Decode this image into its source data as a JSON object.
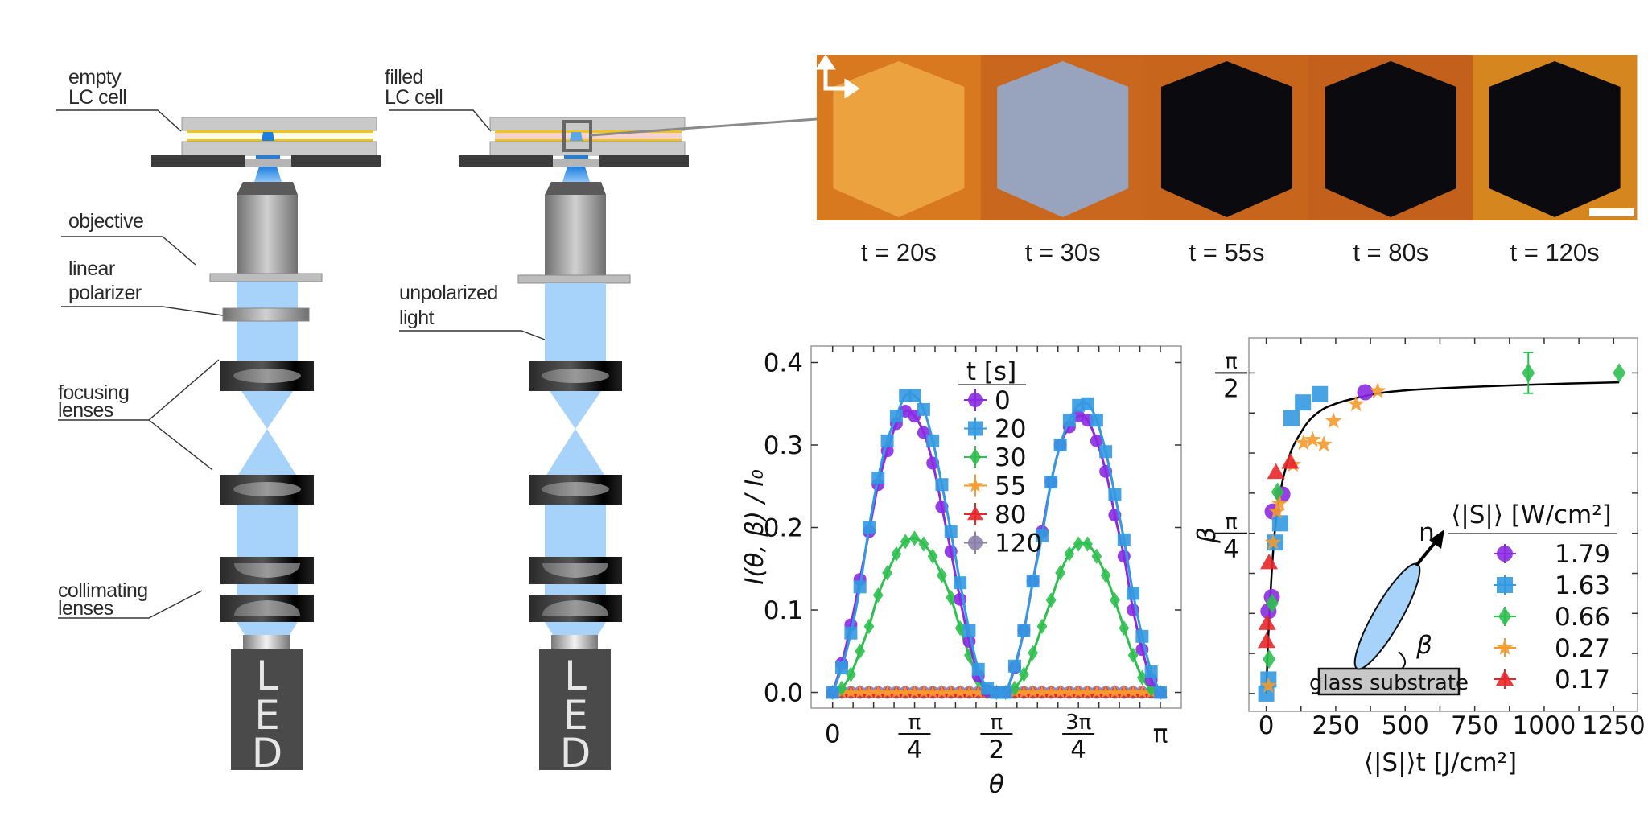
{
  "setup": {
    "empty_cell_label": [
      "empty",
      "LC cell"
    ],
    "filled_cell_label": [
      "filled",
      "LC cell"
    ],
    "objective_label": "objective",
    "polarizer_label": [
      "linear",
      "polarizer"
    ],
    "unpolarized_label": [
      "unpolarized",
      "light"
    ],
    "focusing_label": [
      "focusing",
      "lenses"
    ],
    "collimating_label": [
      "collimating",
      "lenses"
    ],
    "led_letters": [
      "L",
      "E",
      "D"
    ],
    "colors": {
      "light_beam": "#a7d2fa",
      "lc_drop": "#1f7fe0",
      "spacer": "#f0c419",
      "lc_fill": "#f6d3d0",
      "led_box": "#4a4a4a"
    }
  },
  "micrographs": {
    "polarizer_arrows_icon": "crossed-polarizers-arrows",
    "scale_bar": true,
    "frames": [
      {
        "label": "t = 20s",
        "background": "#d8791f",
        "hexagon": "#eca23e"
      },
      {
        "label": "t = 30s",
        "background": "#c9671f",
        "hexagon": "#98a4be"
      },
      {
        "label": "t = 55s",
        "background": "#c8651c",
        "hexagon": "#0b0b0f"
      },
      {
        "label": "t = 80s",
        "background": "#c3601c",
        "hexagon": "#0b0b0f"
      },
      {
        "label": "t = 120s",
        "background": "#d5861f",
        "hexagon": "#0b0b0f"
      }
    ]
  },
  "chart_data": [
    {
      "type": "scatter",
      "xlabel": "θ",
      "ylabel": "I(θ, β) / I₀",
      "xlim": [
        -0.206,
        3.342
      ],
      "ylim": [
        -0.019,
        0.42
      ],
      "yticks": [
        0.0,
        0.1,
        0.2,
        0.3,
        0.4
      ],
      "ytick_labels": [
        "0.0",
        "0.1",
        "0.2",
        "0.3",
        "0.4"
      ],
      "xticks": [
        0,
        0.785,
        1.571,
        2.356,
        3.142
      ],
      "xtick_labels": [
        {
          "num": "0"
        },
        {
          "num": "π",
          "den": "4"
        },
        {
          "num": "π",
          "den": "2"
        },
        {
          "num": "3π",
          "den": "4"
        },
        {
          "num": "π"
        }
      ],
      "grid": false,
      "legend": {
        "title": "t [s]",
        "placement": "top-center"
      },
      "x": [
        0,
        0.087,
        0.175,
        0.262,
        0.349,
        0.436,
        0.524,
        0.611,
        0.698,
        0.785,
        0.873,
        0.96,
        1.047,
        1.134,
        1.222,
        1.309,
        1.396,
        1.484,
        1.571,
        1.658,
        1.745,
        1.833,
        1.92,
        2.007,
        2.094,
        2.182,
        2.269,
        2.356,
        2.443,
        2.531,
        2.618,
        2.705,
        2.793,
        2.88,
        2.967,
        3.054,
        3.142
      ],
      "series": [
        {
          "name": "0",
          "marker": "circle",
          "color": "#8a2be2",
          "fit": true,
          "values": [
            0,
            0.035,
            0.082,
            0.137,
            0.195,
            0.252,
            0.293,
            0.326,
            0.341,
            0.335,
            0.315,
            0.278,
            0.225,
            0.171,
            0.113,
            0.062,
            0.02,
            0.002,
            0,
            0,
            0.03,
            0.075,
            0.135,
            0.195,
            0.255,
            0.3,
            0.322,
            0.335,
            0.33,
            0.305,
            0.268,
            0.215,
            0.165,
            0.1,
            0.052,
            0.015,
            0
          ]
        },
        {
          "name": "20",
          "marker": "square",
          "color": "#3399e0",
          "fit": true,
          "values": [
            0,
            0.03,
            0.072,
            0.128,
            0.2,
            0.26,
            0.305,
            0.335,
            0.36,
            0.36,
            0.343,
            0.305,
            0.252,
            0.195,
            0.133,
            0.075,
            0.028,
            0.005,
            0,
            0,
            0.032,
            0.075,
            0.135,
            0.19,
            0.255,
            0.3,
            0.33,
            0.348,
            0.35,
            0.33,
            0.292,
            0.24,
            0.185,
            0.12,
            0.068,
            0.025,
            0
          ]
        },
        {
          "name": "30",
          "marker": "diamond",
          "color": "#2fbf4f",
          "fit": true,
          "values": [
            0,
            0.005,
            0.022,
            0.05,
            0.08,
            0.118,
            0.145,
            0.168,
            0.183,
            0.187,
            0.18,
            0.165,
            0.142,
            0.115,
            0.078,
            0.045,
            0.015,
            0.002,
            0,
            0,
            0.005,
            0.022,
            0.048,
            0.08,
            0.112,
            0.145,
            0.168,
            0.18,
            0.18,
            0.165,
            0.142,
            0.112,
            0.078,
            0.045,
            0.018,
            0.004,
            0
          ]
        },
        {
          "name": "55",
          "marker": "star",
          "color": "#f59a2e",
          "fit": true,
          "values": [
            0,
            0,
            0,
            0,
            0,
            0,
            0,
            0,
            0,
            0,
            0,
            0,
            0,
            0,
            0,
            0,
            0,
            0,
            0,
            0,
            0,
            0,
            0,
            0,
            0,
            0,
            0,
            0,
            0,
            0,
            0,
            0,
            0,
            0,
            0,
            0,
            0
          ]
        },
        {
          "name": "80",
          "marker": "triangle",
          "color": "#e8262a",
          "fit": true,
          "values": [
            0,
            0,
            0,
            0,
            0,
            0,
            0,
            0,
            0,
            0,
            0,
            0,
            0,
            0,
            0,
            0,
            0,
            0,
            0,
            0,
            0,
            0,
            0,
            0,
            0,
            0,
            0,
            0,
            0,
            0,
            0,
            0,
            0,
            0,
            0,
            0,
            0
          ]
        },
        {
          "name": "120",
          "marker": "circle",
          "color": "#8c7fa8",
          "fit": false,
          "values": [
            0,
            0,
            0,
            0,
            0,
            0,
            0,
            0,
            0,
            0,
            0,
            0,
            0,
            0,
            0,
            0,
            0,
            0,
            0,
            0,
            0,
            0,
            0,
            0,
            0,
            0,
            0,
            0,
            0,
            0,
            0,
            0,
            0,
            0,
            0,
            0,
            0
          ]
        }
      ]
    },
    {
      "type": "scatter",
      "xlabel": "⟨|S|⟩t [J/cm²]",
      "ylabel": "β",
      "xlim": [
        -62.5,
        1336
      ],
      "ylim": [
        -0.087,
        1.742
      ],
      "xticks": [
        0,
        250,
        500,
        750,
        1000,
        1250
      ],
      "xtick_labels": [
        "0",
        "250",
        "500",
        "750",
        "1000",
        "1250"
      ],
      "yticks": [
        0.785,
        1.571
      ],
      "ytick_labels": [
        {
          "num": "π",
          "den": "4"
        },
        {
          "num": "π",
          "den": "2"
        }
      ],
      "grid": false,
      "legend": {
        "title": "⟨|S|⟩ [W/cm²]",
        "placement": "center-right"
      },
      "inset": {
        "director_label": "n",
        "angle_label": "β",
        "substrate_label": "glass substrate"
      },
      "series": [
        {
          "name": "1.79",
          "marker": "circle",
          "color": "#8a2be2",
          "x": [
            356,
            58,
            23,
            20,
            8
          ],
          "y": [
            1.476,
            0.976,
            0.892,
            0.473,
            0.404
          ]
        },
        {
          "name": "1.63",
          "marker": "square",
          "color": "#3399e0",
          "x": [
            193,
            132,
            91,
            50,
            33,
            8,
            0
          ],
          "y": [
            1.467,
            1.426,
            1.349,
            0.834,
            0.74,
            0.069,
            0
          ]
        },
        {
          "name": "0.66",
          "marker": "diamond",
          "color": "#2fbf4f",
          "x": [
            943,
            1270,
            41,
            21,
            10
          ],
          "y": [
            1.571,
            1.571,
            0.987,
            0.442,
            0.168
          ],
          "yerr": [
            0.1,
            0,
            0,
            0,
            0
          ]
        },
        {
          "name": "0.27",
          "marker": "star",
          "color": "#f59a2e",
          "x": [
            401,
            323,
            242,
            134,
            167,
            207,
            96,
            48,
            38,
            25,
            8
          ],
          "y": [
            1.482,
            1.418,
            1.335,
            1.228,
            1.243,
            1.22,
            1.121,
            0.93,
            0.892,
            0.74,
            0.038
          ]
        },
        {
          "name": "0.17",
          "marker": "triangle",
          "color": "#e8262a",
          "x": [
            35,
            86,
            10,
            3,
            1
          ],
          "y": [
            1.083,
            1.133,
            0.641,
            0.343,
            0.255
          ]
        }
      ],
      "fit_curve": {
        "x": [
          0,
          5,
          10,
          20,
          30,
          40,
          60,
          80,
          100,
          150,
          200,
          250,
          300,
          400,
          500,
          700,
          1000,
          1270
        ],
        "y": [
          0,
          0.2,
          0.35,
          0.6,
          0.78,
          0.9,
          1.05,
          1.15,
          1.22,
          1.33,
          1.39,
          1.42,
          1.44,
          1.47,
          1.485,
          1.5,
          1.515,
          1.525
        ]
      }
    }
  ]
}
